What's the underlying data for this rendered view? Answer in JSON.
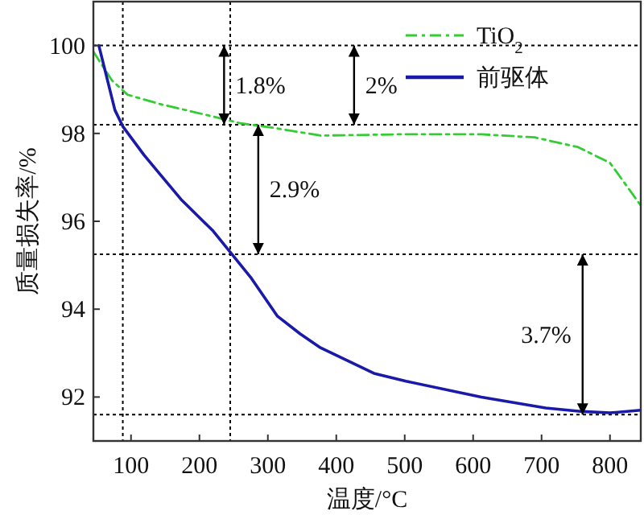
{
  "chart_data": {
    "type": "line",
    "xlabel": "温度/°C",
    "ylabel": "质量损失率/%",
    "xlim": [
      45,
      845
    ],
    "ylim": [
      91,
      101
    ],
    "xticks": [
      100,
      200,
      300,
      400,
      500,
      600,
      700,
      800
    ],
    "yticks": [
      92,
      94,
      96,
      98,
      100
    ],
    "legend": "top right",
    "series": [
      {
        "name": "TiO$_{2}$",
        "color": "#33cc33",
        "line_style": "dashed",
        "x": [
          45,
          72,
          95,
          142,
          213,
          260,
          307,
          377,
          495,
          612,
          690,
          753,
          800,
          845
        ],
        "values": [
          99.86,
          99.21,
          98.88,
          98.67,
          98.41,
          98.23,
          98.13,
          97.95,
          97.98,
          97.98,
          97.91,
          97.69,
          97.33,
          96.36
        ]
      },
      {
        "name": "前驱体",
        "color": "#1a1aaa",
        "line_style": "solid",
        "x": [
          53,
          76.5,
          88,
          119,
          142,
          173,
          220,
          246,
          276,
          314,
          347,
          377,
          455,
          502,
          612,
          706,
          760,
          800,
          845
        ],
        "values": [
          100,
          98.53,
          98.16,
          97.51,
          97.08,
          96.5,
          95.78,
          95.28,
          94.7,
          93.84,
          93.44,
          93.12,
          92.54,
          92.36,
          92,
          91.75,
          91.67,
          91.64,
          91.7
        ]
      }
    ],
    "ref_lines": [
      {
        "axis": "y",
        "value": 100,
        "line_style": "dotted",
        "color": "#000000"
      },
      {
        "axis": "y",
        "value": 98.2,
        "line_style": "dotted",
        "color": "#000000"
      },
      {
        "axis": "y",
        "value": 95.25,
        "line_style": "dotted",
        "color": "#000000"
      },
      {
        "axis": "y",
        "value": 91.6,
        "line_style": "dotted",
        "color": "#000000"
      },
      {
        "axis": "x",
        "value": 88,
        "line_style": "dotted",
        "color": "#000000"
      },
      {
        "axis": "x",
        "value": 245,
        "line_style": "dotted",
        "color": "#000000"
      }
    ],
    "annotations": [
      {
        "text": "1.8%",
        "x": 236,
        "y": 98.2
      },
      {
        "text": "2%",
        "x": 426,
        "y": 98.2
      },
      {
        "text": "2.9%",
        "x": 286,
        "y": 95.25
      },
      {
        "text": "3.7%",
        "x": 760,
        "y": 91.6
      }
    ]
  }
}
